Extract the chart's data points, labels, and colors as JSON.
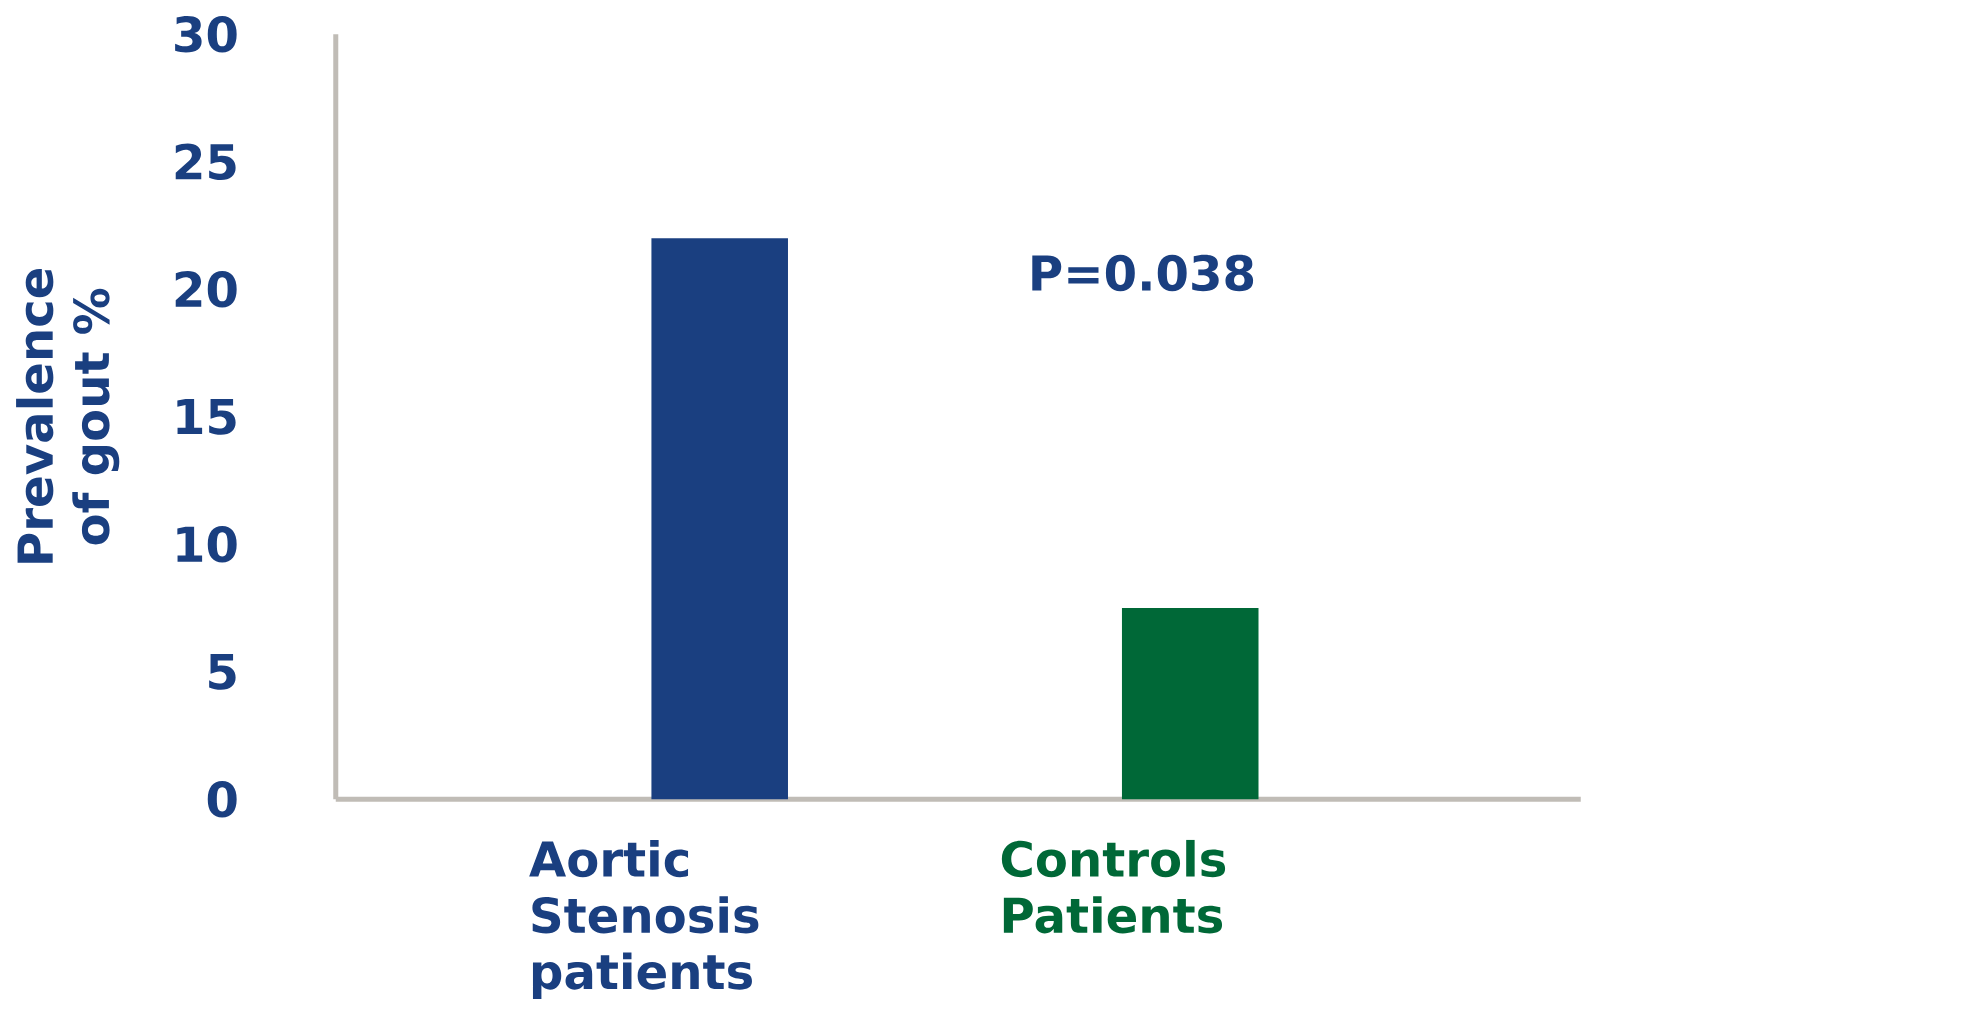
{
  "chart_data": {
    "type": "bar",
    "ylabel": "Prevalence of gout %",
    "categories": [
      "Aortic Stenosis patients",
      "Controls Patients"
    ],
    "values": [
      22,
      7.5
    ],
    "colors": [
      "#1a3f80",
      "#006837"
    ],
    "ylim": [
      0,
      30
    ],
    "yticks": [
      0,
      5,
      10,
      15,
      20,
      25,
      30
    ],
    "annotations": [
      "P=0.038"
    ]
  }
}
